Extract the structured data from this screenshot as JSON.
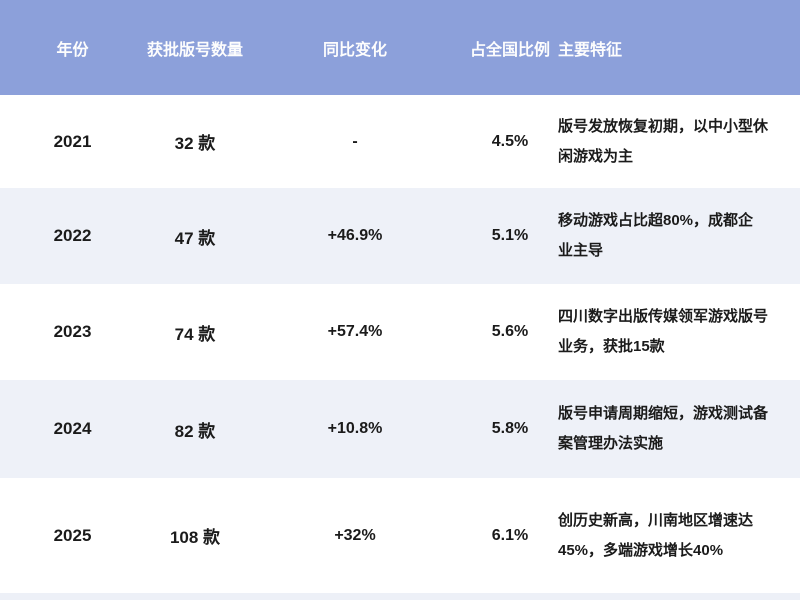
{
  "chart_data": {
    "type": "table",
    "title": "",
    "columns": [
      "年份",
      "获批版号数量",
      "同比变化",
      "占全国比例",
      "主要特征"
    ],
    "rows": [
      {
        "year": "2021",
        "count": "32 款",
        "change": "-",
        "share": "4.5%",
        "features": "版号发放恢复初期，以中小型休闲游戏为主"
      },
      {
        "year": "2022",
        "count": "47 款",
        "change": "+46.9%",
        "share": "5.1%",
        "features": "移动游戏占比超80%，成都企业主导"
      },
      {
        "year": "2023",
        "count": "74 款",
        "change": "+57.4%",
        "share": "5.6%",
        "features": "四川数字出版传媒领军游戏版号业务，获批15款"
      },
      {
        "year": "2024",
        "count": "82 款",
        "change": "+10.8%",
        "share": "5.8%",
        "features": "版号申请周期缩短，游戏测试备案管理办法实施"
      },
      {
        "year": "2025",
        "count": "108 款",
        "change": "+32%",
        "share": "6.1%",
        "features": "创历史新高，川南地区增速达45%，多端游戏增长40%"
      }
    ],
    "layout": {
      "grid": "off",
      "striped": true,
      "stripe_pattern": "white / lavender alternating, header solid periwinkle"
    }
  },
  "colors": {
    "header_bg": "#8ca0da",
    "alt_row_bg": "#eef1f8",
    "header_text": "#ffffff",
    "body_text": "#1b1b1b"
  }
}
